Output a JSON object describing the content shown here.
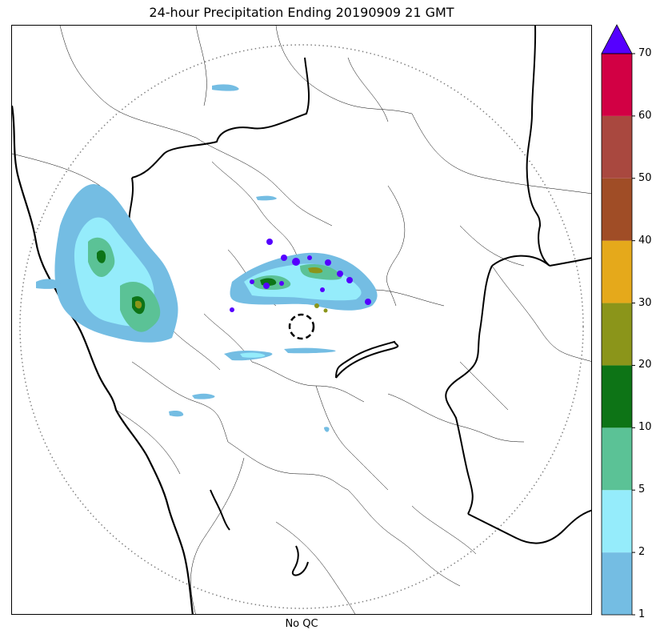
{
  "title": "24-hour Precipitation Ending 20190909 21 GMT",
  "xlabel": "No QC",
  "colorbar": {
    "levels": [
      "1",
      "2",
      "5",
      "10",
      "20",
      "30",
      "40",
      "50",
      "60",
      "70"
    ],
    "colors": [
      "#74bde3",
      "#95ecfb",
      "#5bc296",
      "#0d7416",
      "#8b951a",
      "#e5a91b",
      "#a04d26",
      "#a9483f",
      "#d20044"
    ],
    "extend_color": "#5500ff"
  },
  "map": {
    "range_ring_color": "#808080",
    "radar_site_marker": "dashed-circle",
    "features": [
      "coastline",
      "state-borders",
      "district-borders",
      "range-ring",
      "precipitation-field"
    ]
  }
}
